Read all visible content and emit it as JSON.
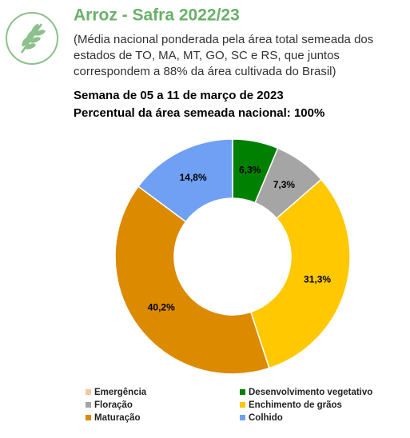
{
  "chart_data": {
    "type": "donut",
    "title": "Arroz - Safra 2022/23",
    "subtitle": [
      "(Média nacional ponderada pela área total semeada dos",
      "estados de TO, MA, MT, GO, SC e RS, que juntos",
      "correspondem a 88% da área cultivada do Brasil)"
    ],
    "week": "Semana de 05 a 11 de março de 2023",
    "area": "Percentual da área semeada nacional: 100%",
    "series": [
      {
        "name": "Emergência",
        "color": "#f4c7a1",
        "values": [
          0
        ],
        "value_labels": [
          null
        ]
      },
      {
        "name": "Desenvolvimento vegetativo",
        "color": "#008000",
        "values": [
          6.3
        ],
        "value_labels": [
          "6,3%"
        ]
      },
      {
        "name": "Floração",
        "color": "#a5a5a5",
        "values": [
          7.3
        ],
        "value_labels": [
          "7,3%"
        ]
      },
      {
        "name": "Enchimento de grãos",
        "color": "#ffc800",
        "values": [
          31.3
        ],
        "value_labels": [
          "31,3%"
        ]
      },
      {
        "name": "Maturação",
        "color": "#dc8a00",
        "values": [
          40.2
        ],
        "value_labels": [
          "40,2%"
        ]
      },
      {
        "name": "Colhido",
        "color": "#70a0f4",
        "values": [
          14.8
        ],
        "value_labels": [
          "14,8%"
        ]
      }
    ]
  }
}
